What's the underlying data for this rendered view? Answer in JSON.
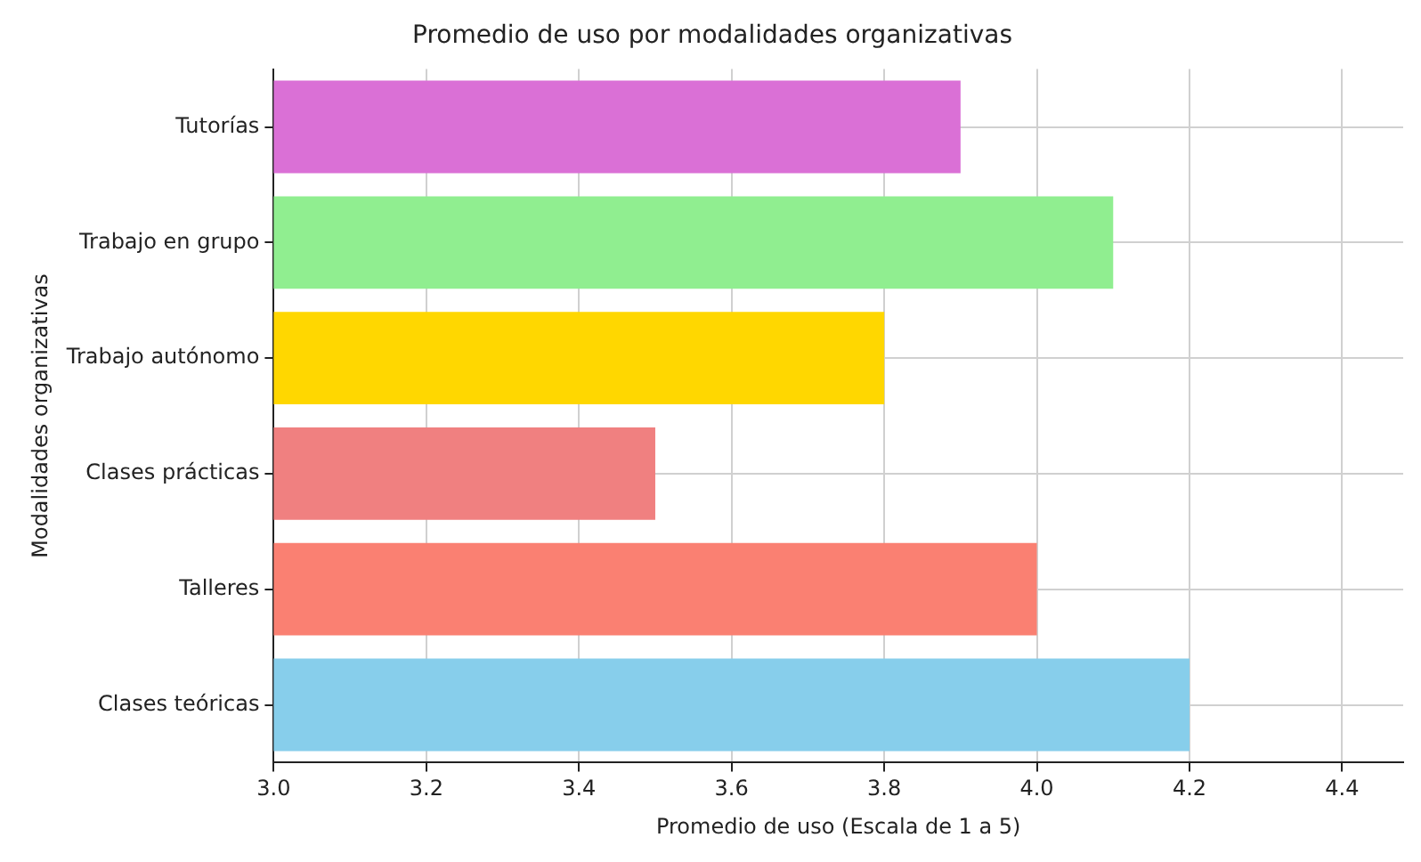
{
  "chart_data": {
    "type": "bar",
    "orientation": "horizontal",
    "title": "Promedio de uso por modalidades organizativas",
    "xlabel": "Promedio de uso (Escala de 1 a 5)",
    "ylabel": "Modalidades organizativas",
    "categories": [
      "Tutorías",
      "Trabajo en grupo",
      "Trabajo autónomo",
      "Clases prácticas",
      "Talleres",
      "Clases teóricas"
    ],
    "values": [
      3.9,
      4.1,
      3.8,
      3.5,
      4.0,
      4.2
    ],
    "colors": [
      "#da70d6",
      "#90ee90",
      "#ffd700",
      "#f08080",
      "#fa8072",
      "#87ceeb"
    ],
    "xlim": [
      3.0,
      4.48
    ],
    "xticks": [
      {
        "value": 3.0,
        "label": "3.0"
      },
      {
        "value": 3.2,
        "label": "3.2"
      },
      {
        "value": 3.4,
        "label": "3.4"
      },
      {
        "value": 3.6,
        "label": "3.6"
      },
      {
        "value": 3.8,
        "label": "3.8"
      },
      {
        "value": 4.0,
        "label": "4.0"
      },
      {
        "value": 4.2,
        "label": "4.2"
      },
      {
        "value": 4.4,
        "label": "4.4"
      }
    ],
    "grid": true,
    "legend": false
  }
}
